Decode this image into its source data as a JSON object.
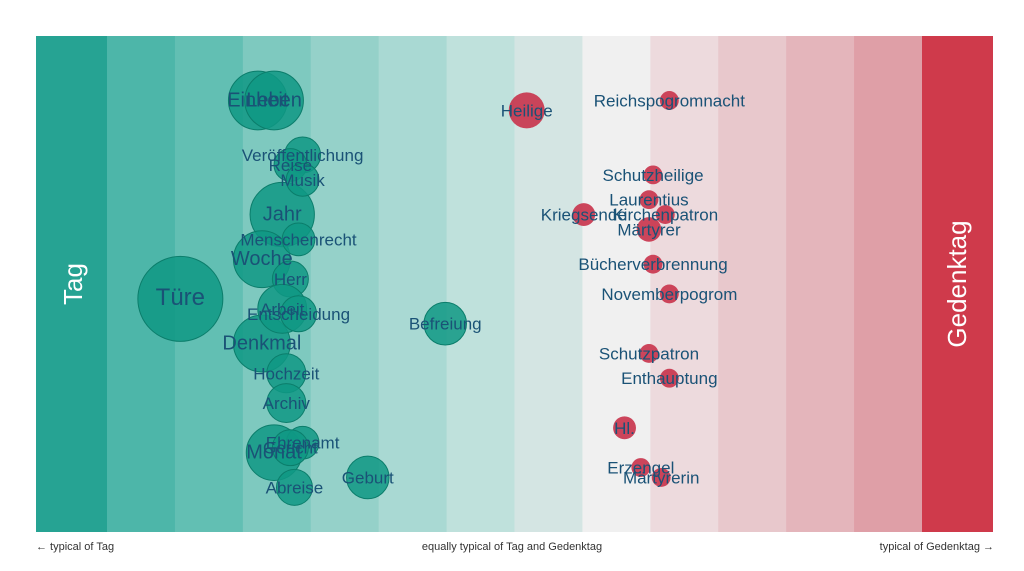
{
  "chart_data": {
    "type": "scatter",
    "left_category": "Tag",
    "right_category": "Gedenktag",
    "xlim": [
      -1,
      1
    ],
    "ylim": [
      0,
      1
    ],
    "band_colors": [
      "#26a393",
      "#4db6a9",
      "#62bfb3",
      "#7ec9bf",
      "#95d1c9",
      "#a9d9d3",
      "#bfe1dc",
      "#d4e5e3",
      "#f0f0f0",
      "#eddadd",
      "#e8c8cc",
      "#e4b5bb",
      "#df9fa7",
      "#cf3a4b"
    ],
    "left_color": "#26a393",
    "right_color": "#cf3a4b",
    "point_color": "#0f9884",
    "label_color": "#1a5276",
    "points": [
      {
        "label": "Türe",
        "x": -0.82,
        "y": 0.47,
        "size": 1.0
      },
      {
        "label": "Einheit",
        "x": -0.63,
        "y": 0.87,
        "size": 0.45
      },
      {
        "label": "Leben",
        "x": -0.59,
        "y": 0.87,
        "size": 0.45
      },
      {
        "label": "Jahr",
        "x": -0.57,
        "y": 0.64,
        "size": 0.55
      },
      {
        "label": "Woche",
        "x": -0.62,
        "y": 0.55,
        "size": 0.42
      },
      {
        "label": "Denkmal",
        "x": -0.62,
        "y": 0.38,
        "size": 0.42
      },
      {
        "label": "Monat",
        "x": -0.59,
        "y": 0.16,
        "size": 0.4
      },
      {
        "label": "Veröffentlichung",
        "x": -0.52,
        "y": 0.76,
        "size": 0.15
      },
      {
        "label": "Reise",
        "x": -0.55,
        "y": 0.74,
        "size": 0.12
      },
      {
        "label": "Musik",
        "x": -0.52,
        "y": 0.71,
        "size": 0.12
      },
      {
        "label": "Menschenrecht",
        "x": -0.53,
        "y": 0.59,
        "size": 0.12
      },
      {
        "label": "Herr",
        "x": -0.55,
        "y": 0.51,
        "size": 0.15
      },
      {
        "label": "Arbeit",
        "x": -0.57,
        "y": 0.45,
        "size": 0.3
      },
      {
        "label": "Entscheidung",
        "x": -0.53,
        "y": 0.44,
        "size": 0.15
      },
      {
        "label": "Hochzeit",
        "x": -0.56,
        "y": 0.32,
        "size": 0.18
      },
      {
        "label": "Archiv",
        "x": -0.56,
        "y": 0.26,
        "size": 0.18
      },
      {
        "label": "Ehrenamt",
        "x": -0.52,
        "y": 0.18,
        "size": 0.12
      },
      {
        "label": "Gericht",
        "x": -0.55,
        "y": 0.17,
        "size": 0.15
      },
      {
        "label": "Abreise",
        "x": -0.54,
        "y": 0.09,
        "size": 0.15
      },
      {
        "label": "Geburt",
        "x": -0.36,
        "y": 0.11,
        "size": 0.22
      },
      {
        "label": "Befreiung",
        "x": -0.17,
        "y": 0.42,
        "size": 0.22
      },
      {
        "label": "Heilige",
        "x": 0.03,
        "y": 0.85,
        "size": 0.15
      },
      {
        "label": "Reichspogromnacht",
        "x": 0.38,
        "y": 0.87,
        "size": 0.03
      },
      {
        "label": "Schutzheilige",
        "x": 0.34,
        "y": 0.72,
        "size": 0.03
      },
      {
        "label": "Laurentius",
        "x": 0.33,
        "y": 0.67,
        "size": 0.03
      },
      {
        "label": "Kriegsende",
        "x": 0.17,
        "y": 0.64,
        "size": 0.05
      },
      {
        "label": "Kirchenpatron",
        "x": 0.37,
        "y": 0.64,
        "size": 0.03
      },
      {
        "label": "Märtyrer",
        "x": 0.33,
        "y": 0.61,
        "size": 0.06
      },
      {
        "label": "Bücherverbrennung",
        "x": 0.34,
        "y": 0.54,
        "size": 0.03
      },
      {
        "label": "Novemberpogrom",
        "x": 0.38,
        "y": 0.48,
        "size": 0.03
      },
      {
        "label": "Schutzpatron",
        "x": 0.33,
        "y": 0.36,
        "size": 0.03
      },
      {
        "label": "Enthauptung",
        "x": 0.38,
        "y": 0.31,
        "size": 0.03
      },
      {
        "label": "Hl.",
        "x": 0.27,
        "y": 0.21,
        "size": 0.05
      },
      {
        "label": "Erzengel",
        "x": 0.31,
        "y": 0.13,
        "size": 0.03
      },
      {
        "label": "Märtyrerin",
        "x": 0.36,
        "y": 0.11,
        "size": 0.03
      }
    ]
  },
  "axis_notes": {
    "left": "← typical of Tag",
    "center": "equally typical of Tag and Gedenktag",
    "right": "typical of Gedenktag →"
  }
}
